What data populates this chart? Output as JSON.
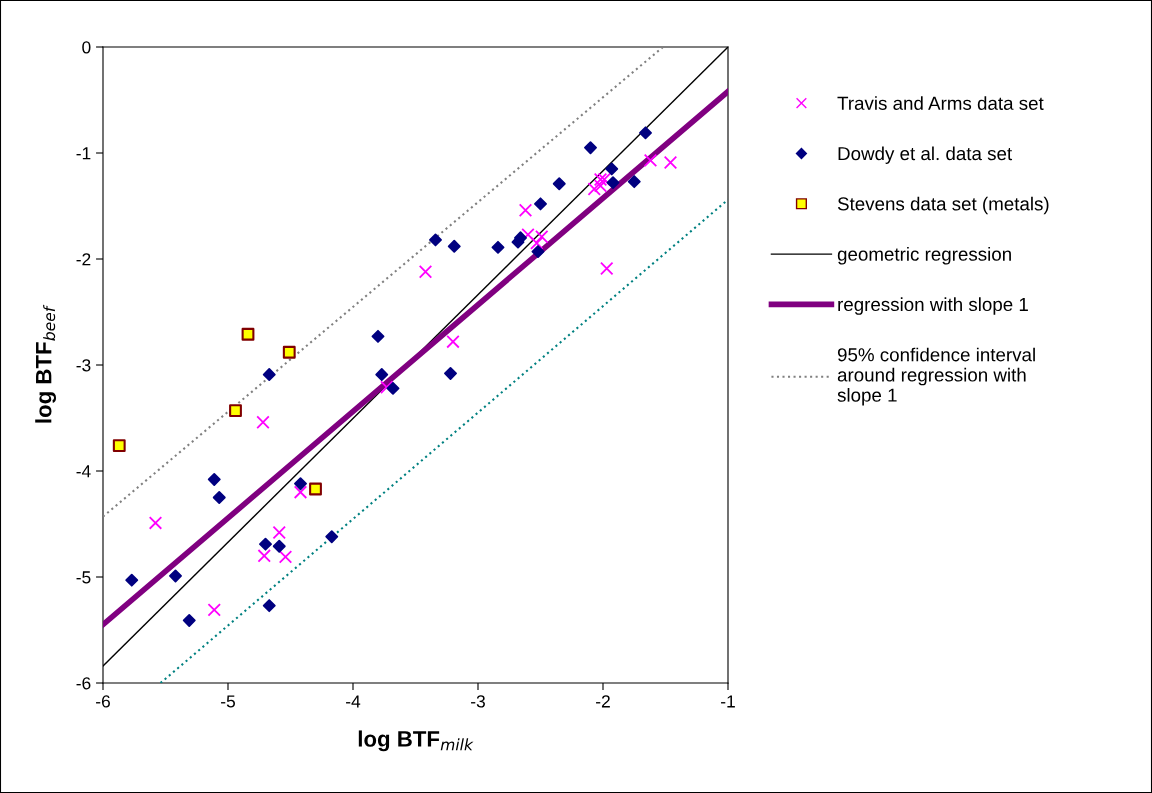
{
  "chart_data": {
    "type": "scatter",
    "xlabel": "log BTF$_{milk}$",
    "ylabel": "log BTF$_{beef}$",
    "xlim": [
      -6,
      -1
    ],
    "ylim": [
      -6,
      0
    ],
    "xticks": [
      -6,
      -5,
      -4,
      -3,
      -2,
      -1
    ],
    "yticks": [
      -6,
      -5,
      -4,
      -3,
      -2,
      -1,
      0
    ],
    "grid": false,
    "legend": "right",
    "series": [
      {
        "name": "Travis and Arms data set",
        "marker": "cross",
        "color": "#ff00ff",
        "x": [
          -5.58,
          -5.11,
          -4.72,
          -4.71,
          -4.59,
          -4.54,
          -4.42,
          -3.73,
          -3.42,
          -3.2,
          -2.62,
          -2.6,
          -2.49,
          -2.53,
          -1.97,
          -2.07,
          -2.02,
          -1.99,
          -2.02,
          -1.62,
          -1.46
        ],
        "values": [
          -4.49,
          -5.31,
          -3.54,
          -4.8,
          -4.58,
          -4.81,
          -4.2,
          -3.21,
          -2.12,
          -2.78,
          -1.54,
          -1.77,
          -1.79,
          -1.85,
          -2.09,
          -1.34,
          -1.25,
          -1.25,
          -1.31,
          -1.07,
          -1.09
        ]
      },
      {
        "name": "Dowdy et al. data set",
        "marker": "diamond",
        "color": "#000080",
        "x": [
          -5.77,
          -5.42,
          -5.31,
          -5.11,
          -5.07,
          -4.67,
          -4.7,
          -4.59,
          -4.67,
          -4.42,
          -4.17,
          -3.8,
          -3.77,
          -3.68,
          -3.34,
          -3.19,
          -3.22,
          -2.84,
          -2.68,
          -2.66,
          -2.52,
          -2.5,
          -2.35,
          -2.1,
          -1.93,
          -1.92,
          -1.75,
          -1.66
        ],
        "values": [
          -5.03,
          -4.99,
          -5.41,
          -4.08,
          -4.25,
          -3.09,
          -4.69,
          -4.71,
          -5.27,
          -4.12,
          -4.62,
          -2.73,
          -3.09,
          -3.22,
          -1.82,
          -1.88,
          -3.08,
          -1.89,
          -1.84,
          -1.8,
          -1.93,
          -1.48,
          -1.29,
          -0.95,
          -1.15,
          -1.28,
          -1.27,
          -0.81
        ]
      },
      {
        "name": "Stevens data set (metals)",
        "marker": "square",
        "color": "#ffff00",
        "x": [
          -5.87,
          -4.84,
          -4.51,
          -4.94,
          -4.3
        ],
        "values": [
          -3.76,
          -2.71,
          -2.88,
          -3.43,
          -4.17
        ]
      },
      {
        "name": "geometric regression",
        "type": "line",
        "line_style": "solid",
        "color": "#000000",
        "x": [
          -6,
          -1
        ],
        "values": [
          -5.84,
          0
        ]
      },
      {
        "name": "regression with slope 1",
        "type": "line",
        "line_style": "solid",
        "color": "#800080",
        "x": [
          -6,
          -1
        ],
        "values": [
          -5.45,
          -0.42
        ]
      },
      {
        "name": "95% confidence interval around regression with slope 1",
        "type": "line",
        "line_style": "dotted",
        "color": "#808080",
        "x": [
          -6,
          -1.52
        ],
        "values": [
          -4.43,
          0
        ]
      },
      {
        "type": "line",
        "line_style": "dotted",
        "color": "#008080",
        "x": [
          -5.54,
          -1
        ],
        "values": [
          -6,
          -1.44
        ]
      }
    ]
  }
}
